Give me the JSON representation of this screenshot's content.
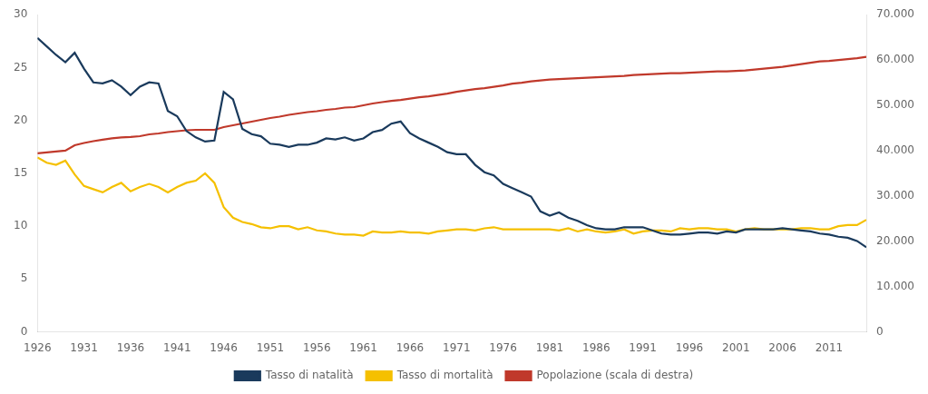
{
  "chart_data": {
    "type": "line",
    "x": [
      1926,
      1927,
      1928,
      1929,
      1930,
      1931,
      1932,
      1933,
      1934,
      1935,
      1936,
      1937,
      1938,
      1939,
      1940,
      1941,
      1942,
      1943,
      1944,
      1945,
      1946,
      1947,
      1948,
      1949,
      1950,
      1951,
      1952,
      1953,
      1954,
      1955,
      1956,
      1957,
      1958,
      1959,
      1960,
      1961,
      1962,
      1963,
      1964,
      1965,
      1966,
      1967,
      1968,
      1969,
      1970,
      1971,
      1972,
      1973,
      1974,
      1975,
      1976,
      1977,
      1978,
      1979,
      1980,
      1981,
      1982,
      1983,
      1984,
      1985,
      1986,
      1987,
      1988,
      1989,
      1990,
      1991,
      1992,
      1993,
      1994,
      1995,
      1996,
      1997,
      1998,
      1999,
      2000,
      2001,
      2002,
      2003,
      2004,
      2005,
      2006,
      2007,
      2008,
      2009,
      2010,
      2011,
      2012,
      2013,
      2014,
      2015
    ],
    "series": [
      {
        "name": "Tasso di natalità",
        "color": "#1a3a5c",
        "values": [
          27.8,
          27.0,
          26.2,
          25.5,
          26.4,
          24.9,
          23.6,
          23.5,
          23.8,
          23.2,
          22.4,
          23.2,
          23.6,
          23.5,
          20.9,
          20.4,
          19.0,
          18.4,
          18.0,
          18.1,
          22.7,
          22.0,
          19.2,
          18.7,
          18.5,
          17.8,
          17.7,
          17.5,
          17.7,
          17.7,
          17.9,
          18.3,
          18.2,
          18.4,
          18.1,
          18.3,
          18.9,
          19.1,
          19.7,
          19.9,
          18.8,
          18.3,
          17.9,
          17.5,
          17.0,
          16.8,
          16.8,
          15.8,
          15.1,
          14.8,
          14.0,
          13.6,
          13.2,
          12.8,
          11.4,
          11.0,
          11.3,
          10.8,
          10.5,
          10.1,
          9.8,
          9.7,
          9.7,
          9.9,
          9.9,
          9.9,
          9.6,
          9.3,
          9.2,
          9.2,
          9.3,
          9.4,
          9.4,
          9.3,
          9.5,
          9.4,
          9.7,
          9.7,
          9.7,
          9.7,
          9.8,
          9.7,
          9.6,
          9.5,
          9.3,
          9.2,
          9.0,
          8.9,
          8.6,
          8.0
        ]
      },
      {
        "name": "Tasso di mortalità",
        "color": "#f5c000",
        "values": [
          16.5,
          16.0,
          15.8,
          16.2,
          14.9,
          13.8,
          13.5,
          13.2,
          13.7,
          14.1,
          13.3,
          13.7,
          14.0,
          13.7,
          13.2,
          13.7,
          14.1,
          14.3,
          15.0,
          14.1,
          11.8,
          10.8,
          10.4,
          10.2,
          9.9,
          9.8,
          10.0,
          10.0,
          9.7,
          9.9,
          9.6,
          9.5,
          9.3,
          9.2,
          9.2,
          9.1,
          9.5,
          9.4,
          9.4,
          9.5,
          9.4,
          9.4,
          9.3,
          9.5,
          9.6,
          9.7,
          9.7,
          9.6,
          9.8,
          9.9,
          9.7,
          9.7,
          9.7,
          9.7,
          9.7,
          9.7,
          9.6,
          9.8,
          9.5,
          9.7,
          9.5,
          9.4,
          9.5,
          9.7,
          9.3,
          9.5,
          9.6,
          9.6,
          9.5,
          9.8,
          9.7,
          9.8,
          9.8,
          9.7,
          9.7,
          9.5,
          9.7,
          9.8,
          9.7,
          9.7,
          9.7,
          9.7,
          9.8,
          9.8,
          9.7,
          9.7,
          10.0,
          10.1,
          10.1,
          10.6
        ]
      },
      {
        "name": "Popolazione\n(scala di destra)",
        "color": "#c0392b",
        "axis": "y2",
        "values": [
          39.4,
          39.6,
          39.8,
          40.0,
          41.2,
          41.7,
          42.1,
          42.4,
          42.7,
          42.9,
          43.0,
          43.2,
          43.6,
          43.8,
          44.1,
          44.3,
          44.5,
          44.6,
          44.6,
          44.6,
          45.2,
          45.6,
          46.0,
          46.4,
          46.8,
          47.2,
          47.5,
          47.9,
          48.2,
          48.5,
          48.7,
          49.0,
          49.2,
          49.5,
          49.6,
          50.0,
          50.4,
          50.7,
          51.0,
          51.2,
          51.5,
          51.8,
          52.0,
          52.3,
          52.6,
          53.0,
          53.3,
          53.6,
          53.8,
          54.1,
          54.4,
          54.8,
          55.0,
          55.3,
          55.5,
          55.7,
          55.8,
          55.9,
          56.0,
          56.1,
          56.2,
          56.3,
          56.4,
          56.5,
          56.7,
          56.8,
          56.9,
          57.0,
          57.1,
          57.1,
          57.2,
          57.3,
          57.4,
          57.5,
          57.5,
          57.6,
          57.7,
          57.9,
          58.1,
          58.3,
          58.5,
          58.8,
          59.1,
          59.4,
          59.7,
          59.8,
          60.0,
          60.2,
          60.4,
          60.7
        ]
      }
    ],
    "xlim": [
      1926,
      2015
    ],
    "xticks": [
      1926,
      1931,
      1936,
      1941,
      1946,
      1951,
      1956,
      1961,
      1966,
      1971,
      1976,
      1981,
      1986,
      1991,
      1996,
      2001,
      2006,
      2011
    ],
    "ylim": [
      0,
      30
    ],
    "yticks": [
      0,
      5,
      10,
      15,
      20,
      25,
      30
    ],
    "y2lim": [
      0,
      70
    ],
    "y2ticks": [
      0,
      {
        "value": 10,
        "label": "10.000"
      },
      {
        "value": 20,
        "label": "20.000"
      },
      {
        "value": 30,
        "label": "30.000"
      },
      {
        "value": 40,
        "label": "40.000"
      },
      {
        "value": 50,
        "label": "50.000"
      },
      {
        "value": 60,
        "label": "60.000"
      },
      {
        "value": 70,
        "label": "70.000"
      }
    ],
    "grid": false,
    "legend": "bottom"
  }
}
